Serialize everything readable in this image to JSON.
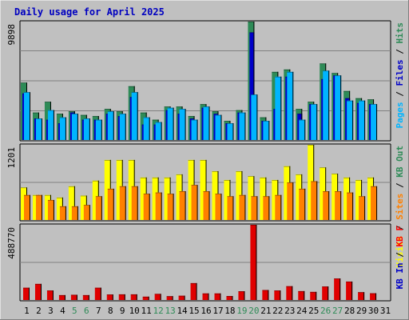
{
  "chart_data": [
    {
      "type": "bar",
      "title": "Daily usage for April 2025",
      "ylabel_max": "9898",
      "categories": [
        "1",
        "2",
        "3",
        "4",
        "5",
        "6",
        "7",
        "8",
        "9",
        "10",
        "11",
        "12",
        "13",
        "14",
        "15",
        "16",
        "17",
        "18",
        "19",
        "20",
        "21",
        "22",
        "23",
        "24",
        "25",
        "26",
        "27",
        "28",
        "29",
        "30",
        "31"
      ],
      "weekend_days": [
        "5",
        "6",
        "12",
        "13",
        "19",
        "20",
        "26",
        "27"
      ],
      "legend": [
        {
          "text": "Pages",
          "color": "#00B4FF"
        },
        {
          "text": "Files",
          "color": "#0000C8"
        },
        {
          "text": "Hits",
          "color": "#2E8B57"
        }
      ],
      "ylim": [
        0,
        9898
      ],
      "series": [
        {
          "name": "Hits",
          "color": "#2E8B57",
          "values": [
            4800,
            2300,
            3200,
            2200,
            2400,
            2100,
            2000,
            2600,
            2400,
            4500,
            2300,
            1700,
            2800,
            2800,
            2000,
            3000,
            2400,
            1600,
            2500,
            9898,
            1900,
            5700,
            5900,
            2600,
            3200,
            6400,
            5600,
            4100,
            3500,
            3400,
            0
          ]
        },
        {
          "name": "Files",
          "color": "#0000C8",
          "values": [
            3900,
            1800,
            1700,
            1400,
            2300,
            1700,
            1700,
            2200,
            2000,
            3600,
            1300,
            1300,
            2500,
            2200,
            1800,
            2700,
            2200,
            1400,
            2300,
            9000,
            1600,
            2600,
            5300,
            2200,
            3000,
            5100,
            5400,
            3500,
            3100,
            3000,
            0
          ]
        },
        {
          "name": "Pages",
          "color": "#00B4FF",
          "values": [
            4000,
            1800,
            2500,
            1900,
            2200,
            1800,
            1700,
            2400,
            2200,
            4000,
            1900,
            1500,
            2700,
            2600,
            1700,
            2800,
            2100,
            1400,
            2300,
            3800,
            1600,
            5300,
            5700,
            1700,
            3000,
            5800,
            5400,
            3300,
            3300,
            3000,
            0
          ]
        }
      ]
    },
    {
      "type": "bar",
      "ylabel_max": "1201",
      "legend": [
        {
          "text": "Visits",
          "color": "#FFFF00"
        },
        {
          "text": "Sites",
          "color": "#FF8000"
        },
        {
          "text": "KB Out",
          "color": "#2E8B57"
        }
      ],
      "ylim": [
        0,
        1201
      ],
      "series": [
        {
          "name": "Visits",
          "color": "#FFFF00",
          "values": [
            520,
            400,
            400,
            360,
            540,
            390,
            630,
            960,
            960,
            960,
            680,
            680,
            680,
            730,
            960,
            960,
            780,
            640,
            780,
            700,
            680,
            640,
            860,
            730,
            1201,
            840,
            740,
            680,
            640,
            680,
            0
          ]
        },
        {
          "name": "Sites",
          "color": "#FF8000",
          "values": [
            400,
            400,
            320,
            220,
            220,
            240,
            380,
            500,
            540,
            540,
            420,
            440,
            420,
            460,
            560,
            460,
            420,
            380,
            400,
            380,
            380,
            400,
            600,
            500,
            620,
            460,
            460,
            440,
            380,
            540,
            0
          ]
        }
      ]
    },
    {
      "type": "bar",
      "ylabel_max": "488770",
      "legend": [
        {
          "text": "KB In",
          "color": "#0000C8"
        },
        {
          "text": "KB F",
          "color": "#FF0000"
        }
      ],
      "ylim": [
        0,
        488770
      ],
      "series": [
        {
          "name": "KB F",
          "color": "#E00000",
          "values": [
            80000,
            105000,
            62000,
            32000,
            34000,
            32000,
            80000,
            36000,
            37000,
            37000,
            22000,
            40000,
            25000,
            28000,
            110000,
            43000,
            43000,
            26000,
            57000,
            488770,
            65000,
            62000,
            90000,
            58000,
            53000,
            88000,
            140000,
            120000,
            51000,
            44000,
            0
          ]
        }
      ]
    }
  ]
}
